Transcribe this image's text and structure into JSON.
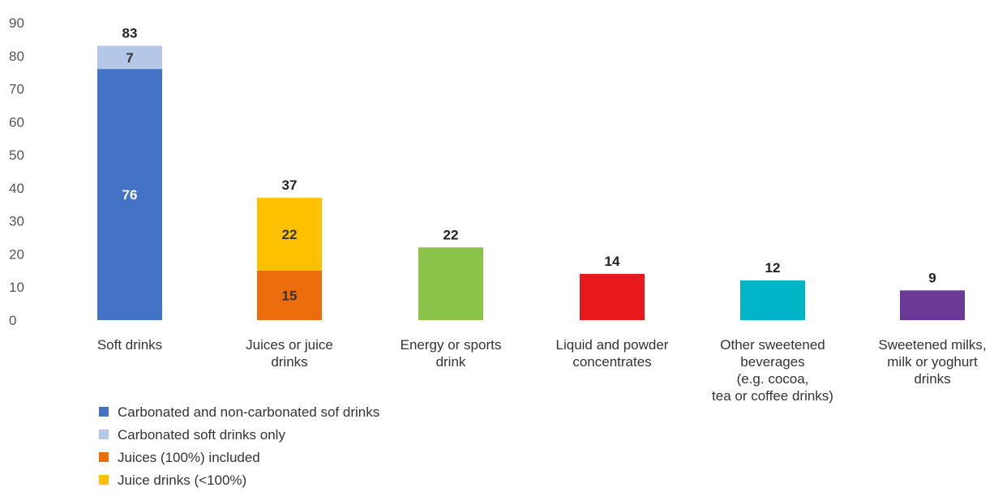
{
  "chart_data": {
    "type": "bar",
    "stacked": true,
    "title": "",
    "xlabel": "",
    "ylabel": "",
    "ylim": [
      0,
      90
    ],
    "yticks": [
      0,
      10,
      20,
      30,
      40,
      50,
      60,
      70,
      80,
      90
    ],
    "grid": false,
    "legend_position": "bottom-left",
    "categories": [
      [
        "Soft drinks"
      ],
      [
        "Juices or juice",
        "drinks"
      ],
      [
        "Energy or sports",
        "drink"
      ],
      [
        "Liquid and powder",
        "concentrates"
      ],
      [
        "Other sweetened",
        "beverages",
        "(e.g. cocoa,",
        "tea or coffee drinks)"
      ],
      [
        "Sweetened milks,",
        "milk or yoghurt",
        "drinks"
      ]
    ],
    "totals": [
      83,
      37,
      22,
      14,
      12,
      9
    ],
    "series": [
      {
        "name": "Carbonated and non-carbonated sof drinks",
        "color": "#4472c4",
        "label_color": "#ffffff",
        "values": [
          76,
          null,
          null,
          null,
          null,
          null
        ]
      },
      {
        "name": "Carbonated soft drinks only",
        "color": "#b4c7e7",
        "label_color": "#333333",
        "values": [
          7,
          null,
          null,
          null,
          null,
          null
        ]
      },
      {
        "name": "Juices (100%) included",
        "color": "#ed6c0c",
        "label_color": "#333333",
        "values": [
          null,
          15,
          null,
          null,
          null,
          null
        ]
      },
      {
        "name": "Juice drinks (<100%)",
        "color": "#ffc000",
        "label_color": "#333333",
        "values": [
          null,
          22,
          null,
          null,
          null,
          null
        ]
      },
      {
        "name": "",
        "color": "#8bc34a",
        "label_color": "#333333",
        "show_label": false,
        "in_legend": false,
        "values": [
          null,
          null,
          22,
          null,
          null,
          null
        ]
      },
      {
        "name": "",
        "color": "#e8191a",
        "label_color": "#333333",
        "show_label": false,
        "in_legend": false,
        "values": [
          null,
          null,
          null,
          14,
          null,
          null
        ]
      },
      {
        "name": "",
        "color": "#00b5c8",
        "label_color": "#333333",
        "show_label": false,
        "in_legend": false,
        "values": [
          null,
          null,
          null,
          null,
          12,
          null
        ]
      },
      {
        "name": "",
        "color": "#6b3a96",
        "label_color": "#333333",
        "show_label": false,
        "in_legend": false,
        "values": [
          null,
          null,
          null,
          null,
          null,
          9
        ]
      }
    ]
  }
}
